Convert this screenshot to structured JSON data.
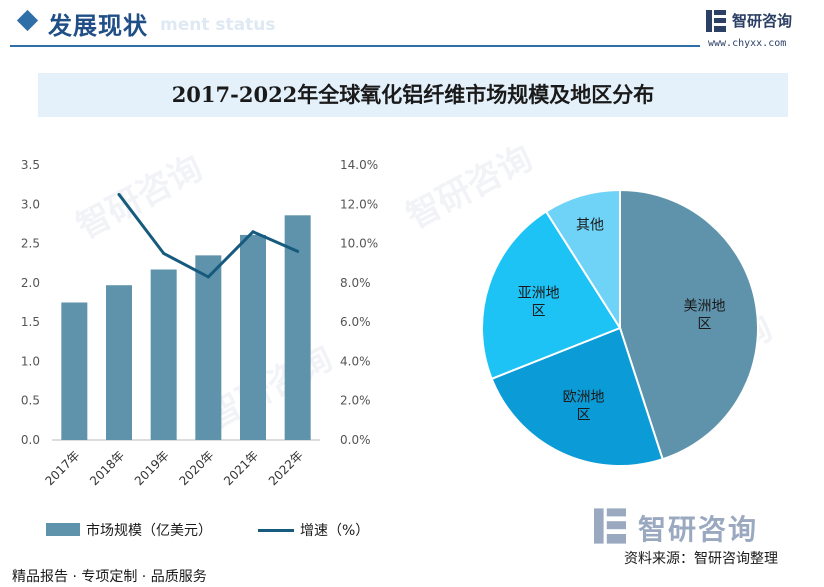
{
  "header": {
    "title": "发展现状",
    "subtitle_en": "ment status"
  },
  "brand": {
    "name": "智研咨询",
    "url": "www.chyxx.com"
  },
  "watermark_text": "智研咨询",
  "colors": {
    "bar": "#5e93ab",
    "line": "#165b7e",
    "pie": [
      "#5e93ab",
      "#0b9bd6",
      "#1ec3f5",
      "#6fd3f7"
    ],
    "banner": "#e4f1fa",
    "accent": "#2f6fa8"
  },
  "chart_data": [
    {
      "type": "bar",
      "title": "2017-2022年全球氧化铝纤维市场规模及地区分布",
      "categories": [
        "2017年",
        "2018年",
        "2019年",
        "2020年",
        "2021年",
        "2022年"
      ],
      "series": [
        {
          "name": "市场规模（亿美元）",
          "type": "bar",
          "axis": "left",
          "values": [
            1.75,
            1.97,
            2.17,
            2.35,
            2.61,
            2.86
          ]
        },
        {
          "name": "增速（%）",
          "type": "line",
          "axis": "right",
          "values": [
            null,
            12.5,
            9.5,
            8.3,
            10.6,
            9.6
          ]
        }
      ],
      "ylim": [
        0,
        3.5
      ],
      "yticks": [
        "0.0",
        "0.5",
        "1.0",
        "1.5",
        "2.0",
        "2.5",
        "3.0",
        "3.5"
      ],
      "y2lim": [
        0,
        14
      ],
      "y2ticks": [
        "0.0%",
        "2.0%",
        "4.0%",
        "6.0%",
        "8.0%",
        "10.0%",
        "12.0%",
        "14.0%"
      ],
      "legend": "bottom-left",
      "grid": false
    },
    {
      "type": "pie",
      "slices": [
        {
          "label": "美洲地区",
          "lines": [
            "美洲地",
            "区"
          ],
          "value": 45
        },
        {
          "label": "欧洲地区",
          "lines": [
            "欧洲地",
            "区"
          ],
          "value": 24
        },
        {
          "label": "亚洲地区",
          "lines": [
            "亚洲地",
            "区"
          ],
          "value": 22
        },
        {
          "label": "其他",
          "lines": [
            "其他"
          ],
          "value": 9
        }
      ],
      "start_angle_deg": 0,
      "direction": "clockwise"
    }
  ],
  "footer": {
    "left": "精品报告 · 专项定制 · 品质服务",
    "source": "资料来源：智研咨询整理"
  }
}
